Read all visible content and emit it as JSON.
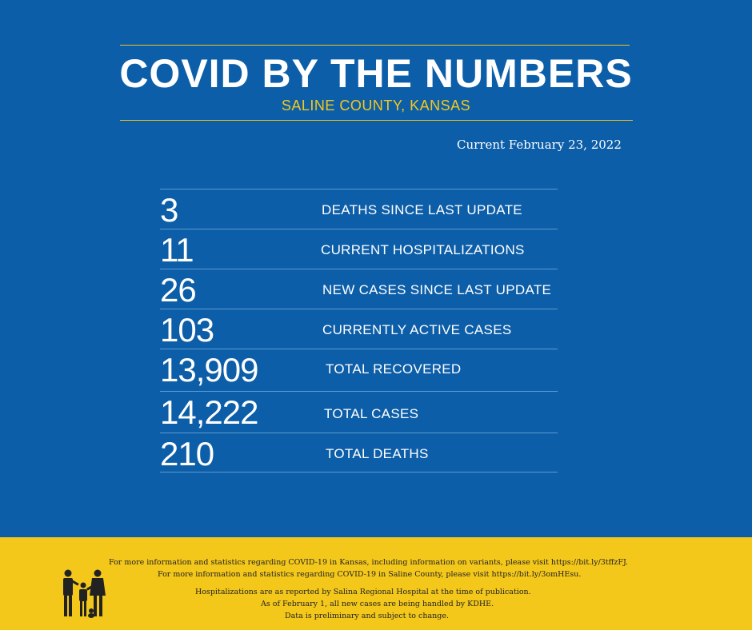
{
  "header": {
    "title": "COVID BY THE NUMBERS",
    "subtitle": "SALINE COUNTY, KANSAS",
    "current_date": "Current February 23, 2022"
  },
  "stats": [
    {
      "value": "3",
      "label": "DEATHS SINCE LAST UPDATE"
    },
    {
      "value": "11",
      "label": "CURRENT HOSPITALIZATIONS"
    },
    {
      "value": "26",
      "label": "NEW CASES SINCE LAST UPDATE"
    },
    {
      "value": "103",
      "label": "CURRENTLY ACTIVE CASES"
    },
    {
      "value": "13,909",
      "label": "TOTAL RECOVERED"
    },
    {
      "value": "14,222",
      "label": "TOTAL CASES"
    },
    {
      "value": "210",
      "label": "TOTAL DEATHS"
    }
  ],
  "footer": {
    "line1": "For more information and statistics regarding COVID-19 in Kansas, including information on variants, please visit https://bit.ly/3tffzFJ.",
    "line2": "For more information and statistics regarding COVID-19 in Saline County, please visit  https://bit.ly/3omHEsu.",
    "line3": "Hospitalizations are as reported by Salina Regional Hospital at the time of publication.",
    "line4": "As of February 1, all new cases are being handled by KDHE.",
    "line5": "Data is preliminary and subject to change.",
    "logo_icon": "family-icon"
  },
  "colors": {
    "background": "#0d5ea8",
    "accent": "#f4c81b",
    "rule": "#e9c224",
    "divider": "#5d99cf"
  }
}
